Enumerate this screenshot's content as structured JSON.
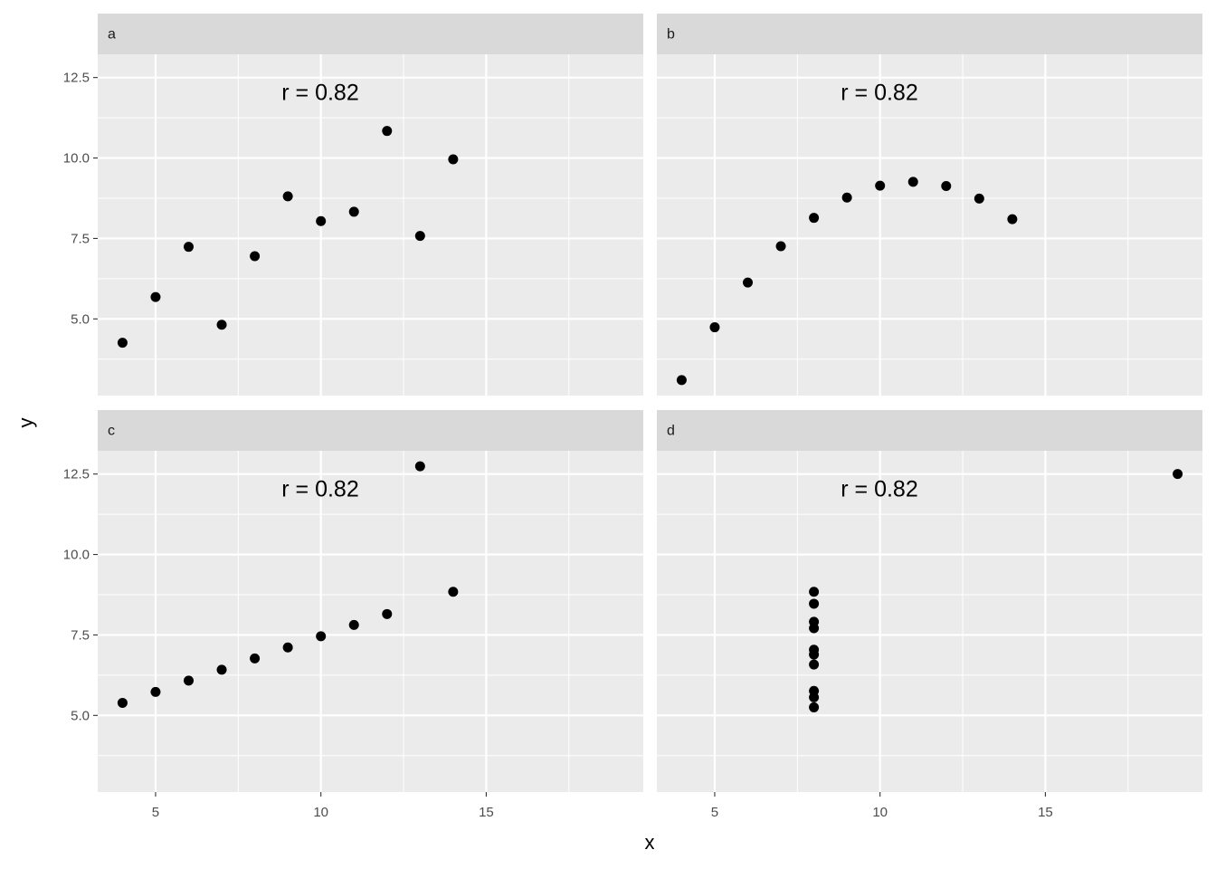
{
  "chart_data": {
    "type": "scatter",
    "xlabel": "x",
    "ylabel": "y",
    "color": "#000000",
    "grid": true,
    "xlim": [
      3.25,
      19.75
    ],
    "ylim": [
      2.618,
      13.222
    ],
    "xticks": [
      5,
      10,
      15
    ],
    "xminor": [
      7.5,
      12.5,
      17.5
    ],
    "yticks": [
      {
        "value": 5,
        "label": "5.0"
      },
      7.5,
      {
        "value": 10,
        "label": "10.0"
      },
      12.5
    ],
    "yminor": [
      3.75,
      6.25,
      8.75,
      11.25
    ],
    "facets": [
      {
        "label": "a",
        "annotation": "r = 0.82",
        "x": [
          10,
          8,
          13,
          9,
          11,
          14,
          6,
          4,
          12,
          7,
          5
        ],
        "y": [
          8.04,
          6.95,
          7.58,
          8.81,
          8.33,
          9.96,
          7.24,
          4.26,
          10.84,
          4.82,
          5.68
        ]
      },
      {
        "label": "b",
        "annotation": "r = 0.82",
        "x": [
          10,
          8,
          13,
          9,
          11,
          14,
          6,
          4,
          12,
          7,
          5
        ],
        "y": [
          9.14,
          8.14,
          8.74,
          8.77,
          9.26,
          8.1,
          6.13,
          3.1,
          9.13,
          7.26,
          4.74
        ]
      },
      {
        "label": "c",
        "annotation": "r = 0.82",
        "x": [
          10,
          8,
          13,
          9,
          11,
          14,
          6,
          4,
          12,
          7,
          5
        ],
        "y": [
          7.46,
          6.77,
          12.74,
          7.11,
          7.81,
          8.84,
          6.08,
          5.39,
          8.15,
          6.42,
          5.73
        ]
      },
      {
        "label": "d",
        "annotation": "r = 0.82",
        "x": [
          8,
          8,
          8,
          8,
          8,
          8,
          8,
          19,
          8,
          8,
          8
        ],
        "y": [
          6.58,
          5.76,
          7.71,
          8.84,
          8.47,
          7.04,
          5.25,
          12.5,
          5.56,
          7.91,
          6.89
        ]
      }
    ]
  }
}
